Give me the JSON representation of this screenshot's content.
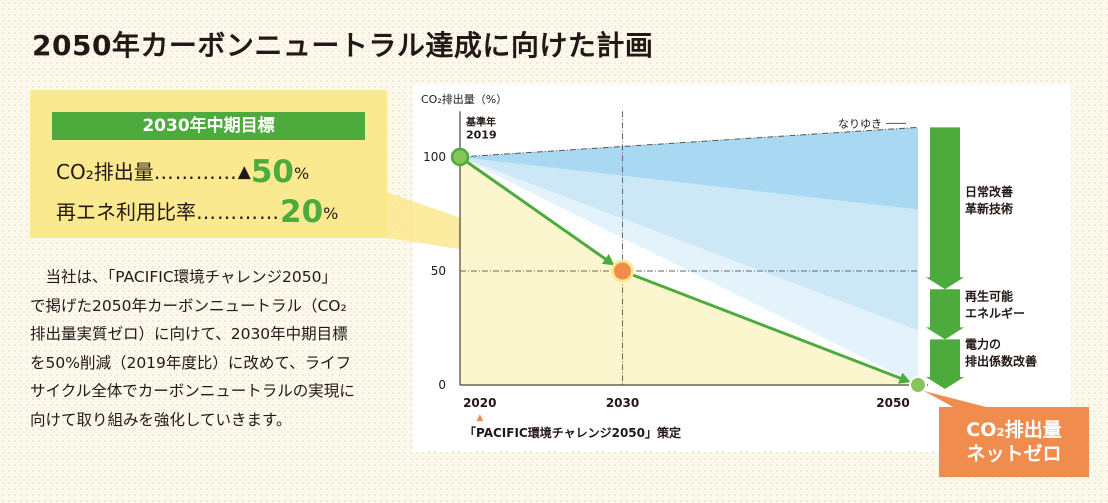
{
  "title": "2050年カーボンニュートラル達成に向けた計画",
  "target": {
    "heading": "2030年中期目標",
    "rows": [
      {
        "label": "CO₂排出量",
        "dots": "…………",
        "mark": "▲",
        "value": "50",
        "unit": "%"
      },
      {
        "label": "再エネ利用比率",
        "dots": "…………",
        "mark": "",
        "value": "20",
        "unit": "%"
      }
    ]
  },
  "paragraph": [
    "　当社は、「PACIFIC環境チャレンジ2050」",
    "で掲げた2050年カーボンニュートラル（CO₂",
    "排出量実質ゼロ）に向けて、2030年中期目標",
    "を50%削減（2019年度比）に改めて、ライフ",
    "サイクル全体でカーボンニュートラルの実現に",
    "向けて取り組みを強化していきます。"
  ],
  "chart_data": {
    "type": "line",
    "ylabel": "CO₂排出量（%）",
    "xlabel": "",
    "x_ticks": [
      "2020",
      "2030",
      "2050"
    ],
    "y_ticks": [
      "100",
      "50",
      "0"
    ],
    "xlim": [
      2019,
      2050
    ],
    "ylim": [
      0,
      120
    ],
    "baseline": {
      "label_line1": "基準年",
      "label_line2": "2019",
      "year": 2019,
      "value": 100
    },
    "series": [
      {
        "name": "なりゆき",
        "x": [
          2019,
          2050
        ],
        "y": [
          100,
          113
        ]
      }
    ],
    "plan_path": {
      "x": [
        2019,
        2030,
        2050
      ],
      "y": [
        100,
        50,
        0
      ]
    },
    "reduction_bands": [
      {
        "label": "日常改善\n革新技術",
        "lower_end": 77
      },
      {
        "label": "再生可能\nエネルギー",
        "lower_end": 24
      },
      {
        "label": "電力の\n排出係数改善",
        "lower_end": 0
      }
    ],
    "highlight_points": [
      {
        "x": 2030,
        "y": 50
      }
    ],
    "annotation_2020": "「PACIFIC環境チャレンジ2050」策定",
    "annotation_mark": "▲",
    "colors": {
      "green": "#4cab3c",
      "orange": "#f08c4e",
      "band_dark": "#a9d8f2",
      "band_mid": "#cce8f7",
      "band_light": "#e4f3fb",
      "fill_yellow": "#fcf6cf"
    }
  },
  "bands_labels": [
    {
      "line1": "日常改善",
      "line2": "革新技術"
    },
    {
      "line1": "再生可能",
      "line2": "エネルギー"
    },
    {
      "line1": "電力の",
      "line2": "排出係数改善"
    }
  ],
  "badge": {
    "line1": "CO₂排出量",
    "line2": "ネットゼロ"
  }
}
